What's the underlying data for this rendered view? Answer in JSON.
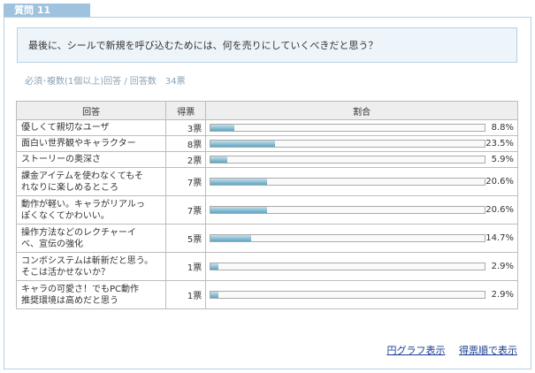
{
  "header": {
    "tab_label": "質問 11"
  },
  "question": {
    "text": "最後に、シールで新規を呼び込むためには、何を売りにしていくべきだと思う？"
  },
  "meta": {
    "text": "必須･複数(1個以上)回答 / 回答数　34票"
  },
  "table": {
    "headers": {
      "answer": "回答",
      "votes": "得票",
      "ratio": "割合"
    },
    "rows": [
      {
        "answer": [
          "優しくて親切なユーザ"
        ],
        "votes": "3票",
        "pct": "8.8%",
        "value": 8.8
      },
      {
        "answer": [
          "面白い世界観やキャラクター"
        ],
        "votes": "8票",
        "pct": "23.5%",
        "value": 23.5
      },
      {
        "answer": [
          "ストーリーの奥深さ"
        ],
        "votes": "2票",
        "pct": "5.9%",
        "value": 5.9
      },
      {
        "answer": [
          "課金アイテムを使わなくてもそ",
          "れなりに楽しめるところ"
        ],
        "votes": "7票",
        "pct": "20.6%",
        "value": 20.6
      },
      {
        "answer": [
          "動作が軽い。キャラがリアルっ",
          "ぽくなくてかわいい。"
        ],
        "votes": "7票",
        "pct": "20.6%",
        "value": 20.6
      },
      {
        "answer": [
          "操作方法などのレクチャーイ",
          "ベ、宣伝の強化"
        ],
        "votes": "5票",
        "pct": "14.7%",
        "value": 14.7
      },
      {
        "answer": [
          "コンボシステムは斬新だと思う。",
          "そこは活かせないか？"
        ],
        "votes": "1票",
        "pct": "2.9%",
        "value": 2.9
      },
      {
        "answer": [
          "キャラの可愛さ！でもPC動作",
          "推奨環境は高めだと思う"
        ],
        "votes": "1票",
        "pct": "2.9%",
        "value": 2.9
      }
    ]
  },
  "links": {
    "pie": "円グラフ表示",
    "sort": "得票順で表示"
  },
  "colors": {
    "tab": "#9fc3de",
    "border": "#b8d0e2",
    "bar": "#5ea6c2",
    "link": "#1a3d8f"
  }
}
